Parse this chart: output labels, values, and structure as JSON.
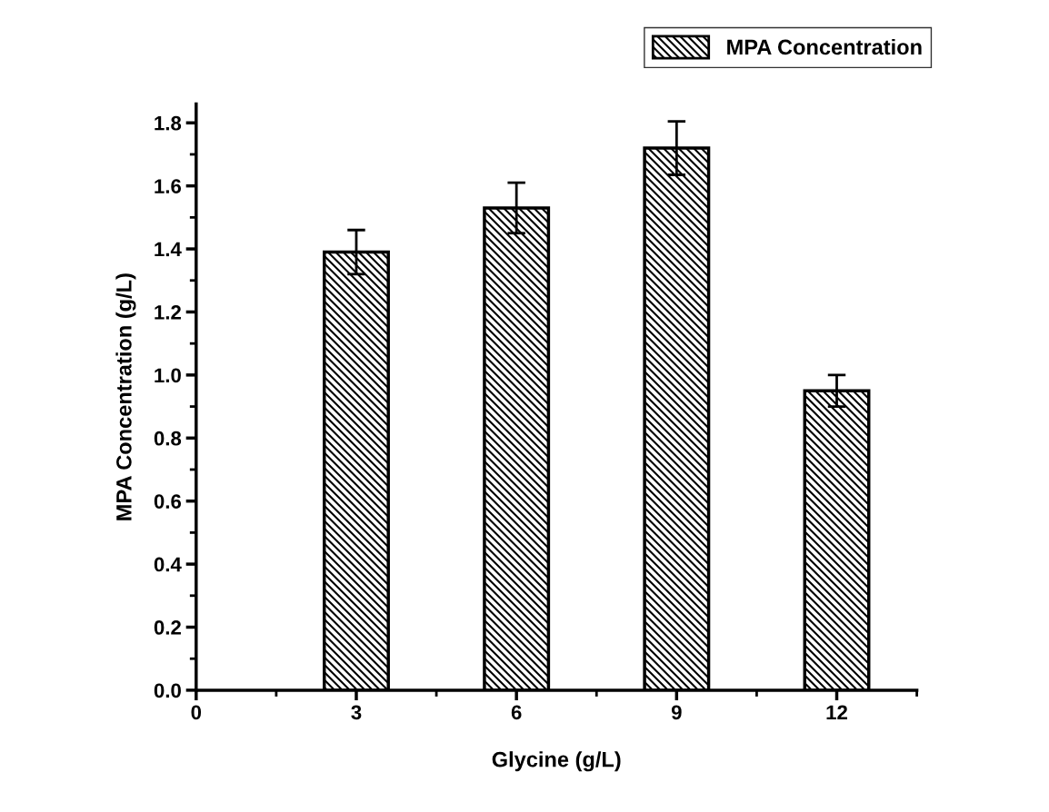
{
  "chart_data": {
    "type": "bar",
    "xlabel": "Glycine (g/L)",
    "ylabel": "MPA Concentration (g/L)",
    "x": [
      3,
      6,
      9,
      12
    ],
    "series": [
      {
        "name": "MPA Concentration",
        "color": "#000000",
        "values": [
          1.39,
          1.53,
          1.72,
          0.95
        ],
        "errors": [
          0.07,
          0.08,
          0.085,
          0.05
        ]
      }
    ],
    "xlim": [
      0,
      13.5
    ],
    "xticks": [
      0,
      3,
      6,
      9,
      12
    ],
    "ylim": [
      0,
      1.86
    ],
    "yticks": [
      {
        "value": 0.0,
        "label": "0.0"
      },
      {
        "value": 0.2,
        "label": "0.2"
      },
      {
        "value": 0.4,
        "label": "0.4"
      },
      {
        "value": 0.6,
        "label": "0.6"
      },
      {
        "value": 0.8,
        "label": "0.8"
      },
      {
        "value": 1.0,
        "label": "1.0"
      },
      {
        "value": 1.2,
        "label": "1.2"
      },
      {
        "value": 1.4,
        "label": "1.4"
      },
      {
        "value": 1.6,
        "label": "1.6"
      },
      {
        "value": 1.8,
        "label": "1.8"
      }
    ],
    "legend": "top right",
    "grid": false
  }
}
